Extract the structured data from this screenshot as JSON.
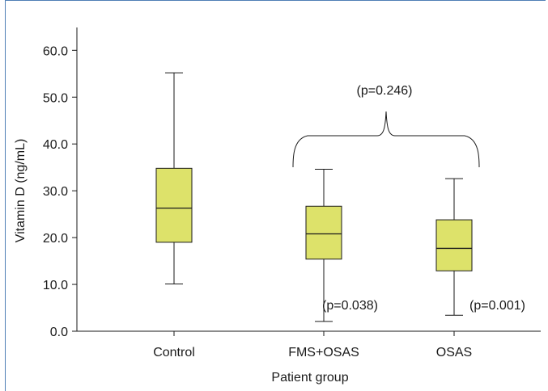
{
  "chart_data": {
    "type": "box",
    "xlabel": "Patient group",
    "ylabel": "Vitamin D (ng/mL)",
    "ylim": [
      0,
      66
    ],
    "yticks": [
      "0.0",
      "10.0",
      "20.0",
      "30.0",
      "40.0",
      "50.0",
      "60.0"
    ],
    "ytick_values": [
      0,
      10,
      20,
      30,
      40,
      50,
      60
    ],
    "grid": false,
    "box_color": "#dde26a",
    "categories": [
      "Control",
      "FMS+OSAS",
      "OSAS"
    ],
    "boxes": [
      {
        "min": 10.1,
        "q1": 19.0,
        "median": 26.3,
        "q3": 34.8,
        "max": 55.2
      },
      {
        "min": 2.1,
        "q1": 15.4,
        "median": 20.8,
        "q3": 26.7,
        "max": 34.6
      },
      {
        "min": 3.4,
        "q1": 12.9,
        "median": 17.7,
        "q3": 23.8,
        "max": 32.6
      }
    ],
    "annotations": {
      "group_comparison": "(p=0.246)",
      "fms_osas": "(p=0.038)",
      "osas": "(p=0.001)"
    }
  }
}
